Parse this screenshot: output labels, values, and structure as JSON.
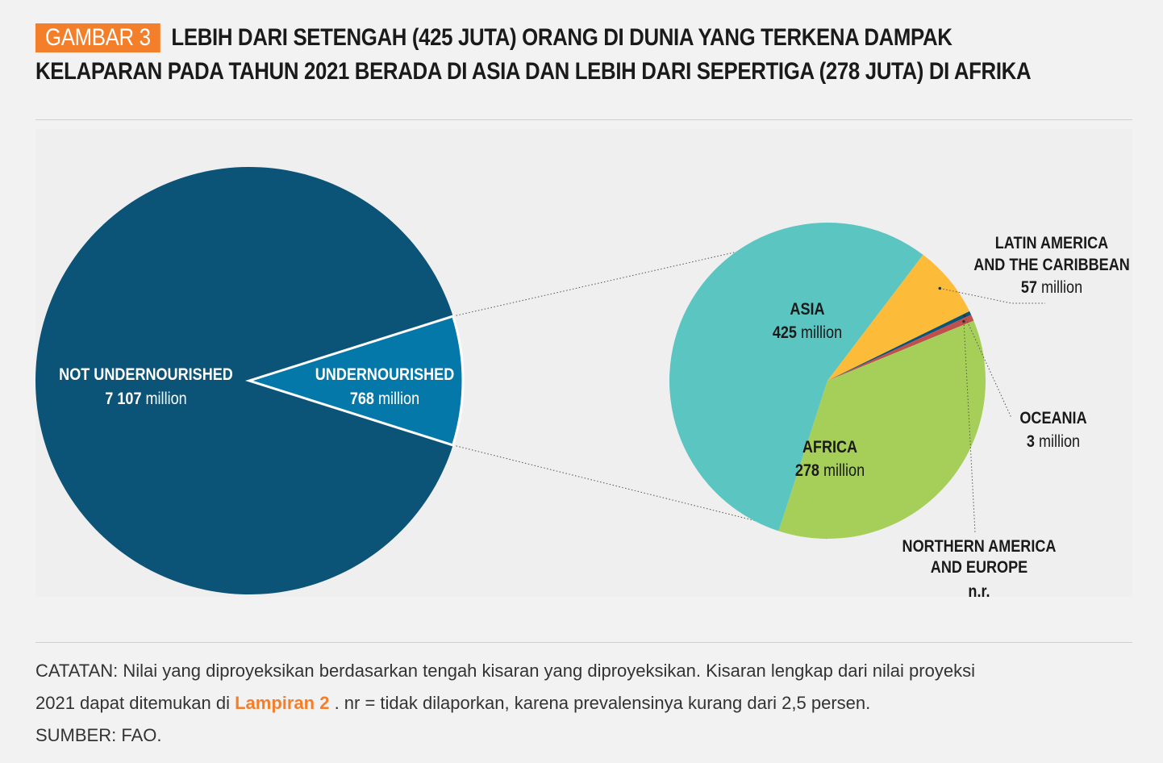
{
  "header": {
    "figure_label": "GAMBAR 3",
    "title_line1": "LEBIH DARI SETENGAH (425 JUTA) ORANG DI DUNIA YANG TERKENA DAMPAK",
    "title_line2": "KELAPARAN PADA TAHUN 2021 BERADA DI ASIA DAN LEBIH DARI SEPERTIGA (278 JUTA) DI AFRIKA"
  },
  "colors": {
    "badge": "#f47f2a",
    "not_undernourished": "#0b5377",
    "undernourished": "#0478a8",
    "asia": "#5bc5c2",
    "latin_america": "#fdbb3a",
    "oceania": "#0b5377",
    "northern_america_europe": "#c0504d",
    "africa": "#a6cf5a",
    "link": "#f47f2a"
  },
  "chart_data": [
    {
      "type": "pie",
      "title": "",
      "unit": "million",
      "slices": [
        {
          "key": "not_undernourished",
          "label": "NOT UNDERNOURISHED",
          "value": 7107,
          "value_text": "7 107",
          "unit": "million"
        },
        {
          "key": "undernourished",
          "label": "UNDERNOURISHED",
          "value": 768,
          "value_text": "768",
          "unit": "million"
        }
      ]
    },
    {
      "type": "pie",
      "title": "",
      "unit": "million",
      "slices": [
        {
          "key": "asia",
          "label": "ASIA",
          "value": 425,
          "value_text": "425",
          "unit": "million"
        },
        {
          "key": "latin_america",
          "label_line1": "LATIN AMERICA",
          "label_line2": "AND THE CARIBBEAN",
          "value": 57,
          "value_text": "57",
          "unit": "million"
        },
        {
          "key": "oceania",
          "label": "OCEANIA",
          "value": 3,
          "value_text": "3",
          "unit": "million"
        },
        {
          "key": "northern_america_europe",
          "label_line1": "NORTHERN AMERICA",
          "label_line2": "AND EUROPE",
          "value": 5,
          "value_text": "n.r."
        },
        {
          "key": "africa",
          "label": "AFRICA",
          "value": 278,
          "value_text": "278",
          "unit": "million"
        }
      ]
    }
  ],
  "footer": {
    "note_part1": "CATATAN: Nilai yang diproyeksikan berdasarkan tengah kisaran yang diproyeksikan. Kisaran lengkap dari nilai proyeksi",
    "note_part2": "2021 dapat ditemukan di ",
    "note_link": "Lampiran 2",
    "note_part3": " . nr = tidak dilaporkan, karena prevalensinya kurang dari 2,5 persen.",
    "source": "SUMBER: FAO."
  }
}
